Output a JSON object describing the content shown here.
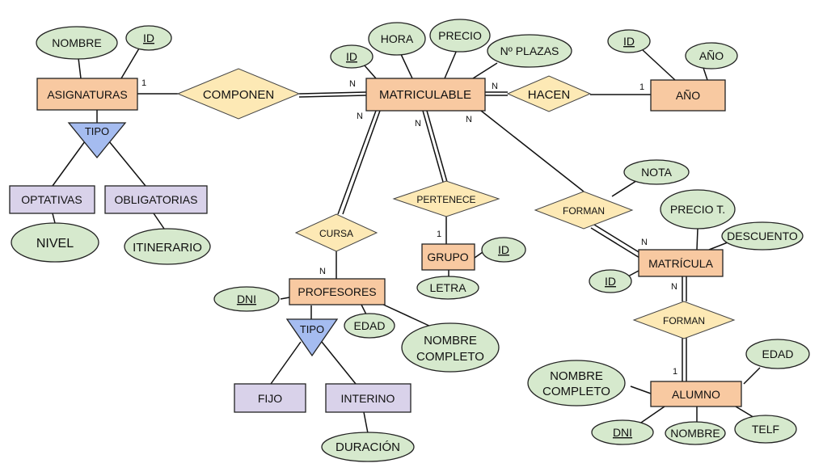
{
  "entities": {
    "asignaturas": "ASIGNATURAS",
    "matriculable": "MATRICULABLE",
    "anio": "AÑO",
    "profesores": "PROFESORES",
    "grupo": "GRUPO",
    "matricula": "MATRÍCULA",
    "alumno": "ALUMNO",
    "optativas": "OPTATIVAS",
    "obligatorias": "OBLIGATORIAS",
    "fijo": "FIJO",
    "interino": "INTERINO"
  },
  "relationships": {
    "componen": "COMPONEN",
    "hacen": "HACEN",
    "cursa": "CURSA",
    "pertenece": "PERTENECE",
    "forman1": "FORMAN",
    "forman2": "FORMAN"
  },
  "specializations": {
    "tipo_asig": "TIPO",
    "tipo_prof": "TIPO"
  },
  "attributes": {
    "asig_nombre": "NOMBRE",
    "asig_id": "ID",
    "mat_id": "ID",
    "mat_hora": "HORA",
    "mat_precio": "PRECIO",
    "mat_plazas": "Nº PLAZAS",
    "anio_id": "ID",
    "anio_anio": "AÑO",
    "opt_nivel": "NIVEL",
    "obl_itinerario": "ITINERARIO",
    "prof_dni": "DNI",
    "prof_edad": "EDAD",
    "prof_nombre_1": "NOMBRE",
    "prof_nombre_2": "COMPLETO",
    "int_duracion": "DURACIÓN",
    "grupo_id": "ID",
    "grupo_letra": "LETRA",
    "matr_nota": "NOTA",
    "matr_precio": "PRECIO T.",
    "matr_descuento": "DESCUENTO",
    "matr_id": "ID",
    "alu_edad": "EDAD",
    "alu_nombre_1": "NOMBRE",
    "alu_nombre_2": "COMPLETO",
    "alu_dni": "DNI",
    "alu_nombre": "NOMBRE",
    "alu_telf": "TELF"
  },
  "cardinalities": {
    "asig_componen": "1",
    "componen_mat": "N",
    "mat_hacen": "N",
    "hacen_anio": "1",
    "mat_cursa": "N",
    "cursa_prof": "N",
    "mat_pertenece": "N",
    "pertenece_grupo": "1",
    "mat_forman": "N",
    "forman_matr": "N",
    "matr_forman2": "N",
    "forman2_alumno": "1"
  }
}
